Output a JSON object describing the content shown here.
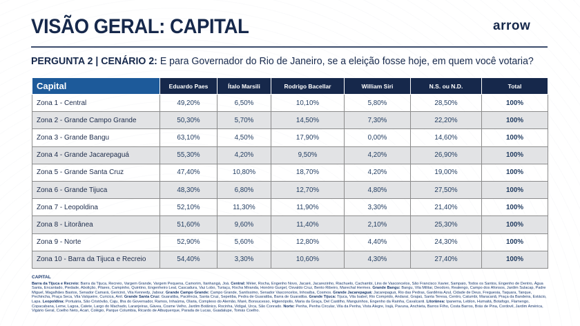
{
  "header": {
    "title": "VISÃO GERAL: CAPITAL",
    "logo": "arrow"
  },
  "question": {
    "label": "PERGUNTA 2 | CENÁRIO 2:",
    "text": " E para Governador do Rio de Janeiro, se a eleição fosse hoje, em quem você votaria?"
  },
  "table": {
    "columns": [
      "Capital",
      "Eduardo Paes",
      "Ítalo Marsili",
      "Rodrigo Bacellar",
      "William Siri",
      "N.S. ou N.D.",
      "Total"
    ],
    "rows": [
      [
        "Zona 1 - Central",
        "49,20%",
        "6,50%",
        "10,10%",
        "5,80%",
        "28,50%",
        "100%"
      ],
      [
        "Zona 2 - Grande Campo Grande",
        "50,30%",
        "5,70%",
        "14,50%",
        "7,30%",
        "22,20%",
        "100%"
      ],
      [
        "Zona 3 - Grande Bangu",
        "63,10%",
        "4,50%",
        "17,90%",
        "0,00%",
        "14,60%",
        "100%"
      ],
      [
        "Zona 4 - Grande Jacarepaguá",
        "55,30%",
        "4,20%",
        "9,50%",
        "4,20%",
        "26,90%",
        "100%"
      ],
      [
        "Zona 5 - Grande Santa Cruz",
        "47,40%",
        "10,80%",
        "18,70%",
        "4,20%",
        "19,00%",
        "100%"
      ],
      [
        "Zona 6 - Grande Tijuca",
        "48,30%",
        "6,80%",
        "12,70%",
        "4,80%",
        "27,50%",
        "100%"
      ],
      [
        "Zona 7 - Leopoldina",
        "52,10%",
        "11,30%",
        "11,90%",
        "3,30%",
        "21,40%",
        "100%"
      ],
      [
        "Zona 8 - Litorânea",
        "51,60%",
        "9,60%",
        "11,40%",
        "2,10%",
        "25,30%",
        "100%"
      ],
      [
        "Zona 9 - Norte",
        "52,90%",
        "5,60%",
        "12,80%",
        "4,40%",
        "24,30%",
        "100%"
      ],
      [
        "Zona 10 - Barra da Tijuca e Recreio",
        "54,40%",
        "3,30%",
        "10,60%",
        "4,30%",
        "27,40%",
        "100%"
      ]
    ]
  },
  "footnote": {
    "heading": "CAPITAL",
    "segments": [
      {
        "label": "Barra da Tijuca e Recreio:",
        "text": " Barra da Tijuca, Recreio, Vargem Grande, Vargem Pequena, Camorim, Itanhangá, Joá. "
      },
      {
        "label": "Central:",
        "text": " Méier, Rocha, Engenho Novo, Jacaré, Jacarezinho, Riachuelo, Cachambi, Lins de Vasconcelos, São Francisco Xavier, Sampaio, Todos os Santos, Engenho de Dentro, Água Santa, Encantado, Piedade, Abolição, Pilares, Campinho, Quintino, Engenheiro Leal, Cascadura, Vaz Lobo, Turiaçu, Rocha Miranda, Honório Gurgel, Osvaldo Cruz, Bento Ribeiro, Marechal Hermes. "
      },
      {
        "label": "Grande Bangu:",
        "text": " Bangu, Vila Militar, Deodoro, Realengo, Campo dos Afonsos, Jardim Sulacap, Padre Miguel, Magalhães Bastos, Senador Camará, Gericinó, Vila Kennedy, Jabour. "
      },
      {
        "label": "Grande Campo Grande:",
        "text": " Campo Grande, Santíssimo, Senador Vasconcelos, Inhoaíba, Cosmos. "
      },
      {
        "label": "Grande Jacarepaguá:",
        "text": " Jacarepaguá, Rio das Pedras, Gardênia Azul, Cidade de Deus, Freguesia, Taquara, Tanque, Pechincha, Praça Seca, Vila Valqueire, Curicica, Anil. "
      },
      {
        "label": "Grande Santa Cruz:",
        "text": " Guaratiba, Paciência, Santa Cruz, Sepetiba, Pedra de Guaratiba, Barra de Guaratiba. "
      },
      {
        "label": "Grande Tijuca:",
        "text": " Tijuca, Vila Isabel, Rio Comprido, Andaraí, Grajaú, Santa Teresa, Centro, Catumbi, Maracanã, Praça da Bandeira, Estácio, Lapa. "
      },
      {
        "label": "Leopoldina:",
        "text": " Portuária, São Cristóvão, Caju, Ilha do Governador, Ramos, Inhaúma, Olaria, Complexo do Alemão, Maré, Bonsucesso, Higienópolis, Maria da Graça, Del Castilho, Manguinhos, Engenho da Rainha, Cavalcanti. "
      },
      {
        "label": "Litorânea:",
        "text": " Ipanema, Leblon, Humaitá, Botafogo, Flamengo, Copacabana, Leme, Lagoa, Catete, Largo do Machado, Laranjeiras, Gávea, Cosme Velho, Jardim Botânico, Rocinha, Vidigal, Urca, São Conrado. "
      },
      {
        "label": "Norte:",
        "text": " Penha, Penha Circular, Vila da Penha, Vista Alegre, Irajá, Pavuna, Anchieta, Barros Filho, Costa Barros, Brás de Pina, Cordovil, Jardim América, Vigário Geral, Coelho Neto, Acari, Colégio, Parque Columbia, Ricardo de Albuquerque, Parada de Lucas, Guadalupe, Tomás Coelho."
      }
    ]
  }
}
